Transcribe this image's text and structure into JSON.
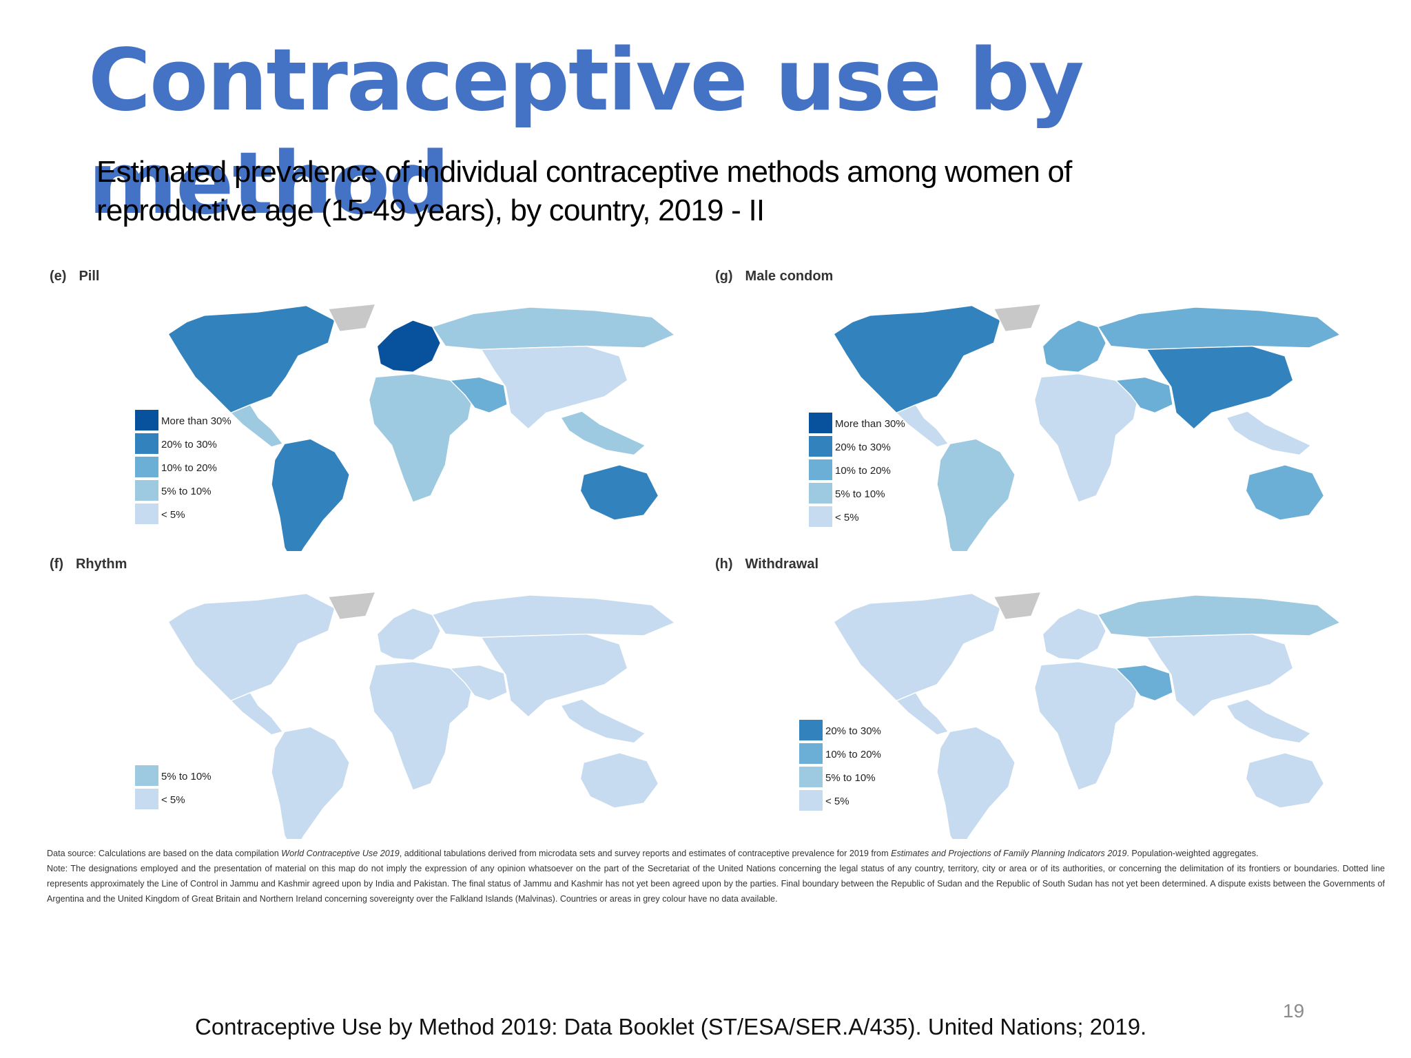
{
  "slide": {
    "title": "Contraceptive use by method",
    "subtitle": "Estimated prevalence of individual contraceptive methods among women of reproductive age (15-49 years), by country, 2019 - II",
    "citation": "Contraceptive Use by Method 2019: Data Booklet (ST/ESA/SER.A/435). United Nations; 2019.",
    "page_number": "19"
  },
  "colors": {
    "more_than_30": "#08519c",
    "from_20_to_30": "#3182bd",
    "from_10_to_20": "#6baed6",
    "from_5_to_10": "#9ecae1",
    "below_5": "#c6dbef",
    "no_data": "#c8c8c8",
    "title": "#4472c4"
  },
  "panels": [
    {
      "letter": "(e)",
      "name": "Pill",
      "legend": [
        {
          "label": "More than 30%",
          "color": "#08519c"
        },
        {
          "label": "20% to 30%",
          "color": "#3182bd"
        },
        {
          "label": "10% to 20%",
          "color": "#6baed6"
        },
        {
          "label": "5% to 10%",
          "color": "#9ecae1"
        },
        {
          "label": "< 5%",
          "color": "#c6dbef"
        }
      ],
      "regions": {
        "north_america": "#3182bd",
        "central_america": "#9ecae1",
        "south_america": "#3182bd",
        "europe": "#08519c",
        "africa": "#9ecae1",
        "middle_east": "#6baed6",
        "russia": "#9ecae1",
        "asia": "#c6dbef",
        "southeast_asia": "#9ecae1",
        "australia": "#3182bd"
      }
    },
    {
      "letter": "(g)",
      "name": "Male condom",
      "legend": [
        {
          "label": "More than 30%",
          "color": "#08519c"
        },
        {
          "label": "20% to 30%",
          "color": "#3182bd"
        },
        {
          "label": "10% to 20%",
          "color": "#6baed6"
        },
        {
          "label": "5% to 10%",
          "color": "#9ecae1"
        },
        {
          "label": "< 5%",
          "color": "#c6dbef"
        }
      ],
      "regions": {
        "north_america": "#3182bd",
        "central_america": "#c6dbef",
        "south_america": "#9ecae1",
        "europe": "#6baed6",
        "africa": "#c6dbef",
        "middle_east": "#6baed6",
        "russia": "#6baed6",
        "asia": "#3182bd",
        "southeast_asia": "#c6dbef",
        "australia": "#6baed6"
      }
    },
    {
      "letter": "(f)",
      "name": "Rhythm",
      "legend": [
        {
          "label": "5% to 10%",
          "color": "#9ecae1"
        },
        {
          "label": "< 5%",
          "color": "#c6dbef"
        }
      ],
      "regions": {
        "north_america": "#c6dbef",
        "central_america": "#c6dbef",
        "south_america": "#c6dbef",
        "europe": "#c6dbef",
        "africa": "#c6dbef",
        "middle_east": "#c6dbef",
        "russia": "#c6dbef",
        "asia": "#c6dbef",
        "southeast_asia": "#c6dbef",
        "australia": "#c6dbef"
      }
    },
    {
      "letter": "(h)",
      "name": "Withdrawal",
      "legend": [
        {
          "label": "20% to 30%",
          "color": "#3182bd"
        },
        {
          "label": "10% to 20%",
          "color": "#6baed6"
        },
        {
          "label": "5% to 10%",
          "color": "#9ecae1"
        },
        {
          "label": "< 5%",
          "color": "#c6dbef"
        }
      ],
      "regions": {
        "north_america": "#c6dbef",
        "central_america": "#c6dbef",
        "south_america": "#c6dbef",
        "europe": "#c6dbef",
        "africa": "#c6dbef",
        "middle_east": "#6baed6",
        "russia": "#9ecae1",
        "asia": "#c6dbef",
        "southeast_asia": "#c6dbef",
        "australia": "#c6dbef"
      }
    }
  ],
  "notes": {
    "source_prefix": "Data source: Calculations are based on the data compilation ",
    "source_title_1": "World Contraceptive Use 2019",
    "source_middle": ", additional tabulations derived from microdata sets and survey reports and estimates of contraceptive prevalence for 2019 from ",
    "source_title_2": "Estimates and Projections of Family Planning Indicators 2019",
    "source_suffix": ". Population-weighted aggregates.",
    "note": "Note: The designations employed and the presentation of material on this map do not imply the expression of any opinion whatsoever on the part of the Secretariat of the United Nations concerning the legal status of any country, territory, city or area or of its authorities, or concerning the delimitation of its frontiers or boundaries. Dotted line represents approximately the Line of Control in Jammu and Kashmir agreed upon by India and Pakistan. The final status of Jammu and Kashmir has not yet been agreed upon by the parties. Final boundary between the Republic of Sudan and the Republic of South Sudan has not yet been determined. A dispute exists between the Governments of Argentina and the United Kingdom of Great Britain and Northern Ireland concerning sovereignty over the Falkland Islands (Malvinas). Countries or areas in grey colour have no data available."
  }
}
